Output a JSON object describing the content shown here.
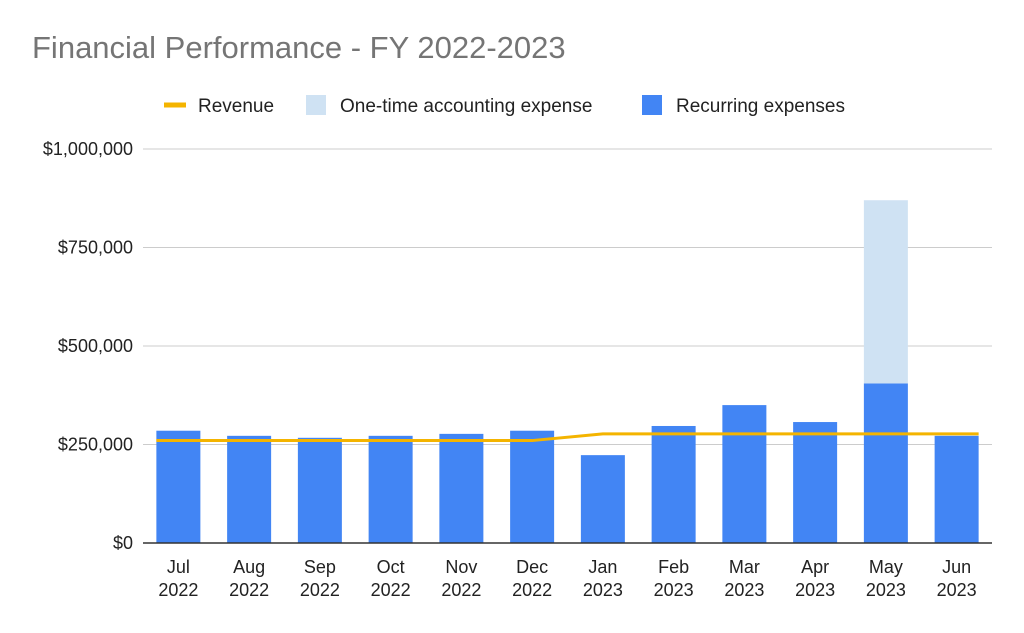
{
  "chart_data": {
    "type": "bar",
    "title": "Financial Performance - FY 2022-2023",
    "xlabel": "",
    "ylabel": "",
    "stacked": true,
    "categories": [
      [
        "Jul",
        "2022"
      ],
      [
        "Aug",
        "2022"
      ],
      [
        "Sep",
        "2022"
      ],
      [
        "Oct",
        "2022"
      ],
      [
        "Nov",
        "2022"
      ],
      [
        "Dec",
        "2022"
      ],
      [
        "Jan",
        "2023"
      ],
      [
        "Feb",
        "2023"
      ],
      [
        "Mar",
        "2023"
      ],
      [
        "Apr",
        "2023"
      ],
      [
        "May",
        "2023"
      ],
      [
        "Jun",
        "2023"
      ]
    ],
    "ylim": [
      0,
      1000000
    ],
    "yticks": [
      0,
      250000,
      500000,
      750000,
      1000000
    ],
    "ytick_labels": [
      "$0",
      "$250,000",
      "$500,000",
      "$750,000",
      "$1,000,000"
    ],
    "grid": true,
    "legend_position": "top",
    "series": [
      {
        "name": "Revenue",
        "type": "line",
        "color": "#F4B400",
        "values": [
          260000,
          260000,
          260000,
          260000,
          260000,
          260000,
          277000,
          277000,
          277000,
          277000,
          277000,
          277000
        ]
      },
      {
        "name": "One-time accounting expense",
        "type": "bar",
        "color": "#CFE2F3",
        "values": [
          0,
          0,
          0,
          0,
          0,
          0,
          0,
          0,
          0,
          0,
          465000,
          0
        ]
      },
      {
        "name": "Recurring expenses",
        "type": "bar",
        "color": "#4285F4",
        "values": [
          285000,
          272000,
          267000,
          272000,
          277000,
          285000,
          223000,
          297000,
          350000,
          307000,
          405000,
          272000
        ]
      }
    ]
  }
}
